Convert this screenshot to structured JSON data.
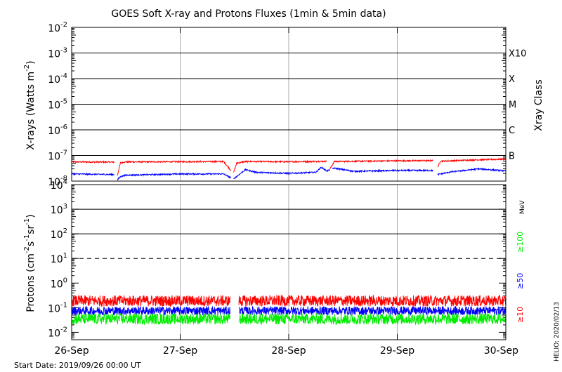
{
  "title": "GOES Soft X-ray and Protons Fluxes   (1min & 5min data)",
  "colors": {
    "long": "#ff0000",
    "short": "#0000ff",
    "p10": "#ff0000",
    "p50": "#0000ff",
    "p100": "#00ee00",
    "grid": "#000000",
    "vgrid": "#aaaaaa"
  },
  "start_date": "Start Date: 2019/09/26 00:00 UT",
  "credit": "HELIO: 2020/02/13",
  "chart_data": [
    {
      "type": "line",
      "name": "xray",
      "yscale": "log",
      "ylim": [
        1e-08,
        0.01
      ],
      "xlim": [
        "26-Sep",
        "30-Sep"
      ],
      "ylabel_main": "X-rays (Watts m",
      "ylabel_sup": "-2",
      "ylabel_end": ")",
      "yticks": [
        {
          "base": "10",
          "exp": "-2",
          "e": -2
        },
        {
          "base": "10",
          "exp": "-3",
          "e": -3
        },
        {
          "base": "10",
          "exp": "-4",
          "e": -4
        },
        {
          "base": "10",
          "exp": "-5",
          "e": -5
        },
        {
          "base": "10",
          "exp": "-6",
          "e": -6
        },
        {
          "base": "10",
          "exp": "-7",
          "e": -7
        },
        {
          "base": "10",
          "exp": "-8",
          "e": -8
        }
      ],
      "class_label": "Xray Class",
      "classes": [
        {
          "label": "X10",
          "e": -3
        },
        {
          "label": "X",
          "e": -4
        },
        {
          "label": "M",
          "e": -5
        },
        {
          "label": "C",
          "e": -6
        },
        {
          "label": "B",
          "e": -7
        }
      ],
      "series": [
        {
          "band": "long",
          "gaps": [
            [
              0.395,
              0.42
            ],
            [
              1.47,
              1.49
            ],
            [
              2.35,
              2.38
            ],
            [
              3.33,
              3.37
            ]
          ],
          "values": [
            [
              0.0,
              5.6e-08
            ],
            [
              0.4,
              5.5e-08
            ],
            [
              0.42,
              1.6e-08
            ],
            [
              0.45,
              5.2e-08
            ],
            [
              0.5,
              5.6e-08
            ],
            [
              1.0,
              5.7e-08
            ],
            [
              1.4,
              5.8e-08
            ],
            [
              1.49,
              2e-08
            ],
            [
              1.52,
              5e-08
            ],
            [
              1.6,
              5.8e-08
            ],
            [
              2.0,
              5.7e-08
            ],
            [
              2.35,
              5.9e-08
            ],
            [
              2.38,
              3e-08
            ],
            [
              2.42,
              5.8e-08
            ],
            [
              3.0,
              6.2e-08
            ],
            [
              3.33,
              6.3e-08
            ],
            [
              3.37,
              3.5e-08
            ],
            [
              3.4,
              6e-08
            ],
            [
              3.75,
              6.8e-08
            ],
            [
              4.0,
              7.2e-08
            ]
          ]
        },
        {
          "band": "short",
          "gaps": [
            [
              0.395,
              0.42
            ],
            [
              1.47,
              1.49
            ],
            [
              2.38,
              2.4
            ],
            [
              3.33,
              3.37
            ]
          ],
          "values": [
            [
              0.0,
              1.9e-08
            ],
            [
              0.4,
              1.8e-08
            ],
            [
              0.42,
              1.1e-08
            ],
            [
              0.45,
              1.5e-08
            ],
            [
              0.5,
              1.7e-08
            ],
            [
              1.0,
              1.9e-08
            ],
            [
              1.4,
              1.9e-08
            ],
            [
              1.49,
              1.2e-08
            ],
            [
              1.55,
              1.9e-08
            ],
            [
              1.6,
              2.8e-08
            ],
            [
              1.7,
              2.2e-08
            ],
            [
              2.0,
              2e-08
            ],
            [
              2.25,
              2.2e-08
            ],
            [
              2.3,
              3.5e-08
            ],
            [
              2.35,
              2.5e-08
            ],
            [
              2.42,
              3.2e-08
            ],
            [
              2.6,
              2.4e-08
            ],
            [
              3.0,
              2.6e-08
            ],
            [
              3.33,
              2.6e-08
            ],
            [
              3.37,
              1.8e-08
            ],
            [
              3.5,
              2.3e-08
            ],
            [
              3.75,
              3e-08
            ],
            [
              4.0,
              2.5e-08
            ]
          ]
        }
      ]
    },
    {
      "type": "line",
      "name": "protons",
      "yscale": "log",
      "ylim": [
        0.005,
        10000.0
      ],
      "xlim": [
        "26-Sep",
        "30-Sep"
      ],
      "categories": [
        "26-Sep",
        "27-Sep",
        "28-Sep",
        "29-Sep",
        "30-Sep"
      ],
      "ylabel_main": "Protons (cm",
      "ylabel_parts": [
        {
          "t": "Protons (cm",
          "sup": false
        },
        {
          "t": "-2",
          "sup": true
        },
        {
          "t": "s",
          "sup": false
        },
        {
          "t": "-1",
          "sup": true
        },
        {
          "t": "sr",
          "sup": false
        },
        {
          "t": "-1",
          "sup": true
        },
        {
          "t": ")",
          "sup": false
        }
      ],
      "yticks": [
        {
          "base": "10",
          "exp": "4",
          "e": 4
        },
        {
          "base": "10",
          "exp": "3",
          "e": 3
        },
        {
          "base": "10",
          "exp": "2",
          "e": 2
        },
        {
          "base": "10",
          "exp": "1",
          "e": 1
        },
        {
          "base": "10",
          "exp": "0",
          "e": 0
        },
        {
          "base": "10",
          "exp": "-1",
          "e": -1
        },
        {
          "base": "10",
          "exp": "-2",
          "e": -2
        }
      ],
      "threshold_dashed": 10,
      "energy_unit": "MeV",
      "legend": [
        {
          "label": "≥100",
          "color": "p100"
        },
        {
          "label": "≥50",
          "color": "p50"
        },
        {
          "label": "≥10",
          "color": "p10"
        }
      ],
      "series": [
        {
          "band": "p10",
          "gap": [
            1.46,
            1.54
          ],
          "level": 0.19,
          "noise": 0.45
        },
        {
          "band": "p50",
          "gap": [
            1.46,
            1.54
          ],
          "level": 0.075,
          "noise": 0.35
        },
        {
          "band": "p100",
          "gap": [
            1.46,
            1.54
          ],
          "level": 0.035,
          "noise": 0.45
        }
      ]
    }
  ]
}
